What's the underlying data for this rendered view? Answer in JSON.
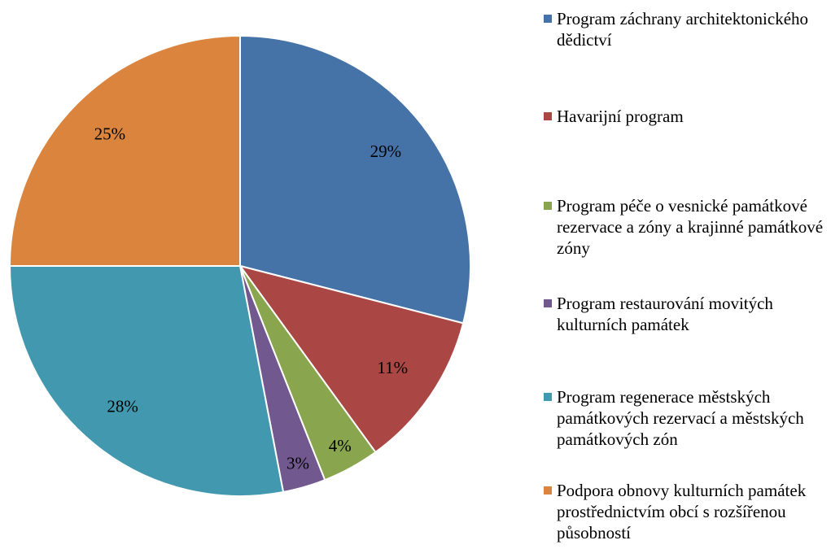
{
  "chart_data": {
    "type": "pie",
    "categories": [
      "Program záchrany architektonického dědictví",
      "Havarijní program",
      "Program péče o vesnické památkové rezervace a zóny a krajinné památkové zóny",
      "Program restaurování movitých kulturních památek",
      "Program regenerace městských památkových rezervací a městských památkových zón",
      "Podpora obnovy kulturních památek prostřednictvím obcí s rozšířenou působností"
    ],
    "values": [
      29,
      11,
      4,
      3,
      28,
      25
    ],
    "value_labels": [
      "29%",
      "11%",
      "4%",
      "3%",
      "28%",
      "25%"
    ],
    "colors": [
      "#4572a7",
      "#aa4643",
      "#89a54e",
      "#71588f",
      "#4198af",
      "#db843d"
    ],
    "legend": "right"
  }
}
